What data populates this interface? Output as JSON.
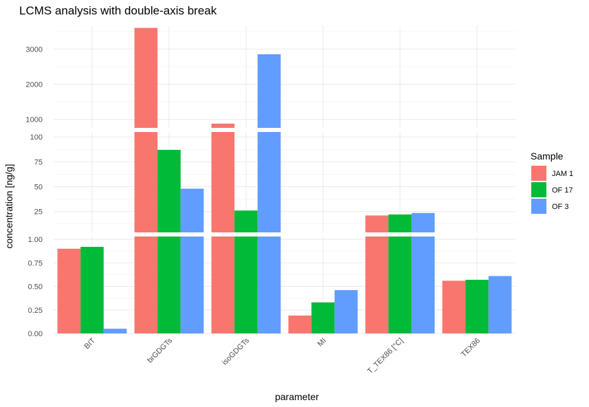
{
  "chart_data": {
    "type": "bar",
    "title": "LCMS analysis with double-axis break",
    "xlabel": "parameter",
    "ylabel": "concentration [ng/g]",
    "categories": [
      "BIT",
      "brGDGTs",
      "isoGDGTs",
      "MI",
      "T_TEX86 [°C]",
      "TEX86"
    ],
    "series": [
      {
        "name": "JAM 1",
        "color": "#F8766D",
        "values": [
          0.9,
          3600,
          880,
          0.19,
          21,
          0.56
        ]
      },
      {
        "name": "OF 17",
        "color": "#00BA38",
        "values": [
          0.92,
          87,
          26,
          0.33,
          22,
          0.57
        ]
      },
      {
        "name": "OF 3",
        "color": "#619CFF",
        "values": [
          0.05,
          48,
          2850,
          0.46,
          23.5,
          0.61
        ]
      }
    ],
    "y_segments": [
      {
        "ylim": [
          0,
          1.03
        ],
        "ticks": [
          "0.00",
          "0.25",
          "0.50",
          "0.75",
          "1.00"
        ]
      },
      {
        "ylim": [
          4,
          105
        ],
        "ticks": [
          "25",
          "50",
          "75",
          "100"
        ]
      },
      {
        "ylim": [
          760,
          3650
        ],
        "ticks": [
          "1000",
          "2000",
          "3000"
        ]
      }
    ],
    "legend": {
      "title": "Sample",
      "position": "right"
    },
    "grid": true
  }
}
